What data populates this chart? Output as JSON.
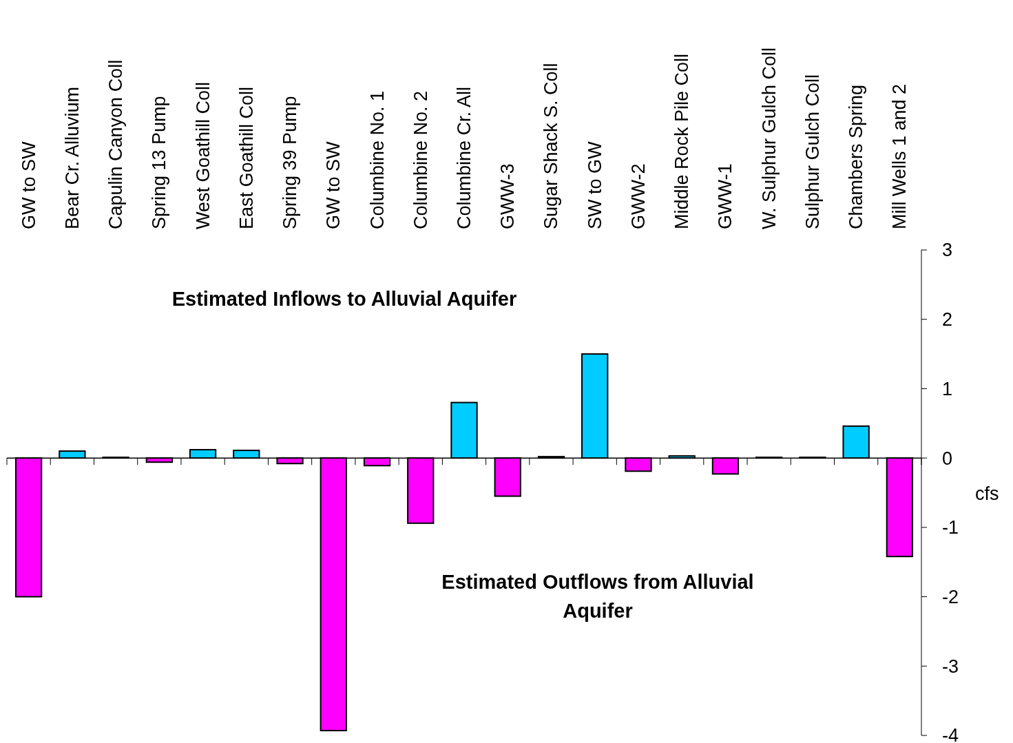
{
  "chart_data": {
    "type": "bar",
    "categories": [
      "GW to SW",
      "Bear Cr. Alluvium",
      "Capulin Canyon Coll",
      "Spring 13 Pump",
      "West Goathill Coll",
      "East Goathill Coll",
      "Spring 39 Pump",
      "GW to SW",
      "Columbine No. 1",
      "Columbine No. 2",
      "Columbine Cr. All",
      "GWW-3",
      "Sugar Shack S. Coll",
      "SW to GW",
      "GWW-2",
      "Middle Rock Pile Coll",
      "GWW-1",
      "W. Sulphur Gulch Coll",
      "Sulphur Gulch Coll",
      "Chambers Spring",
      "Mill Wells 1 and 2"
    ],
    "values": [
      -2.0,
      0.1,
      0.01,
      -0.06,
      0.12,
      0.11,
      -0.08,
      -3.93,
      -0.11,
      -0.94,
      0.8,
      -0.55,
      0.02,
      1.5,
      -0.19,
      0.03,
      -0.23,
      0.01,
      0.01,
      0.46,
      -1.42
    ],
    "colors": [
      "#ff00ff",
      "#00ccff",
      "#00ccff",
      "#ff00ff",
      "#00ccff",
      "#00ccff",
      "#ff00ff",
      "#ff00ff",
      "#ff00ff",
      "#ff00ff",
      "#00ccff",
      "#ff00ff",
      "#00ccff",
      "#00ccff",
      "#ff00ff",
      "#00ccff",
      "#ff00ff",
      "#00ccff",
      "#00ccff",
      "#00ccff",
      "#ff00ff"
    ],
    "ylabel": "cfs",
    "ylim": [
      -4,
      3
    ],
    "yticks": [
      -4,
      -3,
      -2,
      -1,
      0,
      1,
      2,
      3
    ],
    "annotations": [
      "Estimated Inflows to Alluvial Aquifer",
      "Estimated Outflows from Alluvial Aquifer"
    ]
  }
}
